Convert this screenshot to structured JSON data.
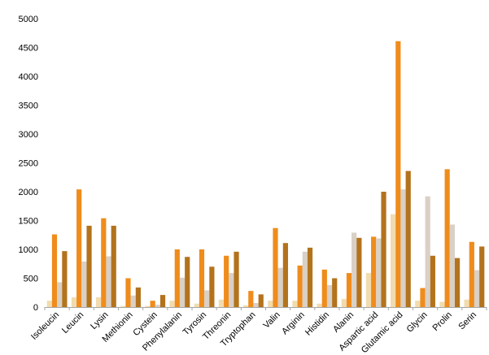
{
  "chart_data": {
    "type": "bar",
    "title": "",
    "xlabel": "",
    "ylabel": "",
    "ylim": [
      0,
      5000
    ],
    "yticks": [
      0,
      500,
      1000,
      1500,
      2000,
      2500,
      3000,
      3500,
      4000,
      4500,
      5000
    ],
    "grid": false,
    "legend": "none",
    "categories": [
      "Isoleucin",
      "Leucin",
      "Lysin",
      "Methionin",
      "Cystein",
      "Phenylalanin",
      "Tyrosin",
      "Threonin",
      "Tryptophan",
      "Valin",
      "Arginin",
      "Histidin",
      "Alanin",
      "Aspartic acid",
      "Glutamic acid",
      "Glycin",
      "Prolin",
      "Serin"
    ],
    "series": [
      {
        "color": "#f2dcae",
        "values": [
          110,
          170,
          170,
          20,
          20,
          110,
          60,
          130,
          30,
          110,
          110,
          60,
          140,
          590,
          1610,
          110,
          90,
          130
        ]
      },
      {
        "color": "#ef8c1c",
        "values": [
          1260,
          2040,
          1540,
          500,
          110,
          1000,
          1000,
          890,
          280,
          1370,
          720,
          650,
          590,
          1220,
          4610,
          330,
          2390,
          1130
        ]
      },
      {
        "color": "#d9d0c6",
        "values": [
          430,
          790,
          880,
          200,
          40,
          510,
          290,
          590,
          70,
          680,
          960,
          380,
          1290,
          1190,
          2040,
          1920,
          1430,
          640
        ]
      },
      {
        "color": "#b3731c",
        "values": [
          970,
          1410,
          1410,
          340,
          210,
          870,
          700,
          960,
          220,
          1110,
          1030,
          500,
          1200,
          2000,
          2360,
          890,
          850,
          1050
        ]
      }
    ]
  }
}
